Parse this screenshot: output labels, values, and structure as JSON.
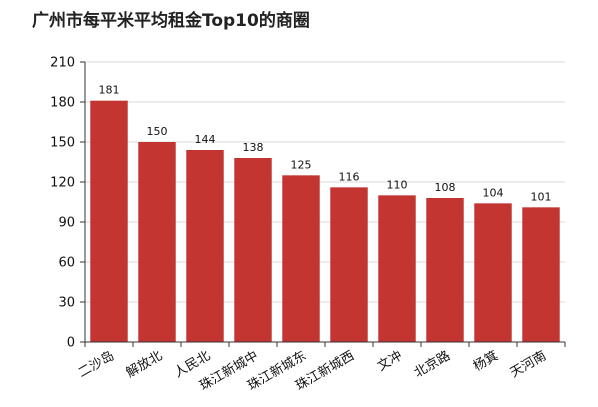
{
  "chart_data": {
    "type": "bar",
    "title": "广州市每平米平均租金Top10的商圈",
    "categories": [
      "二沙岛",
      "解放北",
      "人民北",
      "珠江新城中",
      "珠江新城东",
      "珠江新城西",
      "文冲",
      "北京路",
      "杨箕",
      "天河南"
    ],
    "values": [
      181,
      150,
      144,
      138,
      125,
      116,
      110,
      108,
      104,
      101
    ],
    "yticks": [
      0,
      30,
      60,
      90,
      120,
      150,
      180,
      210
    ],
    "ylim": [
      0,
      210
    ],
    "grid": true,
    "bar_color": "#c23531"
  }
}
